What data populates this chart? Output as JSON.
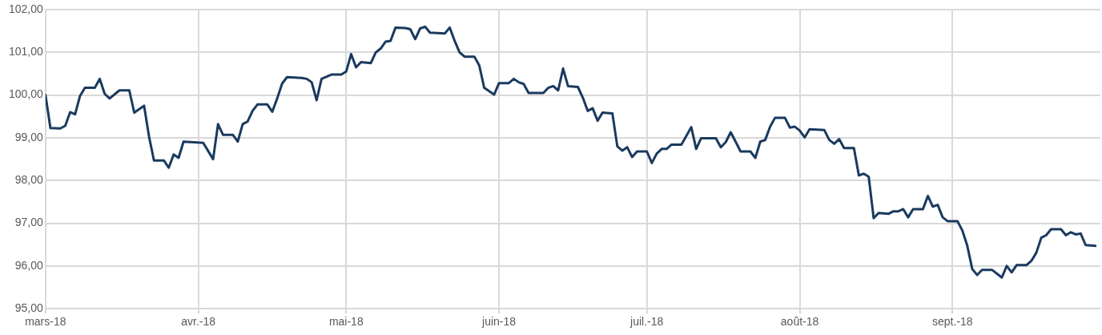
{
  "chart_data": {
    "type": "line",
    "x": [
      "2018-03-01",
      "2018-03-02",
      "2018-03-04",
      "2018-03-05",
      "2018-03-06",
      "2018-03-07",
      "2018-03-08",
      "2018-03-09",
      "2018-03-11",
      "2018-03-12",
      "2018-03-13",
      "2018-03-14",
      "2018-03-16",
      "2018-03-18",
      "2018-03-19",
      "2018-03-21",
      "2018-03-22",
      "2018-03-23",
      "2018-03-25",
      "2018-03-26",
      "2018-03-27",
      "2018-03-28",
      "2018-03-29",
      "2018-04-02",
      "2018-04-04",
      "2018-04-05",
      "2018-04-06",
      "2018-04-08",
      "2018-04-09",
      "2018-04-10",
      "2018-04-11",
      "2018-04-12",
      "2018-04-13",
      "2018-04-15",
      "2018-04-16",
      "2018-04-17",
      "2018-04-18",
      "2018-04-19",
      "2018-04-22",
      "2018-04-23",
      "2018-04-24",
      "2018-04-25",
      "2018-04-26",
      "2018-04-28",
      "2018-04-30",
      "2018-05-01",
      "2018-05-02",
      "2018-05-03",
      "2018-05-04",
      "2018-05-06",
      "2018-05-07",
      "2018-05-08",
      "2018-05-09",
      "2018-05-10",
      "2018-05-11",
      "2018-05-13",
      "2018-05-14",
      "2018-05-15",
      "2018-05-16",
      "2018-05-17",
      "2018-05-18",
      "2018-05-21",
      "2018-05-22",
      "2018-05-23",
      "2018-05-24",
      "2018-05-25",
      "2018-05-27",
      "2018-05-28",
      "2018-05-29",
      "2018-05-31",
      "2018-06-01",
      "2018-06-03",
      "2018-06-04",
      "2018-06-05",
      "2018-06-06",
      "2018-06-07",
      "2018-06-10",
      "2018-06-11",
      "2018-06-12",
      "2018-06-13",
      "2018-06-14",
      "2018-06-15",
      "2018-06-17",
      "2018-06-18",
      "2018-06-19",
      "2018-06-20",
      "2018-06-21",
      "2018-06-22",
      "2018-06-24",
      "2018-06-25",
      "2018-06-26",
      "2018-06-27",
      "2018-06-28",
      "2018-06-29",
      "2018-07-01",
      "2018-07-02",
      "2018-07-03",
      "2018-07-04",
      "2018-07-05",
      "2018-07-06",
      "2018-07-08",
      "2018-07-10",
      "2018-07-11",
      "2018-07-12",
      "2018-07-15",
      "2018-07-16",
      "2018-07-17",
      "2018-07-18",
      "2018-07-19",
      "2018-07-20",
      "2018-07-22",
      "2018-07-23",
      "2018-07-24",
      "2018-07-25",
      "2018-07-26",
      "2018-07-27",
      "2018-07-29",
      "2018-07-30",
      "2018-07-31",
      "2018-08-01",
      "2018-08-02",
      "2018-08-03",
      "2018-08-06",
      "2018-08-07",
      "2018-08-08",
      "2018-08-09",
      "2018-08-10",
      "2018-08-12",
      "2018-08-13",
      "2018-08-14",
      "2018-08-15",
      "2018-08-16",
      "2018-08-17",
      "2018-08-19",
      "2018-08-20",
      "2018-08-21",
      "2018-08-22",
      "2018-08-23",
      "2018-08-24",
      "2018-08-26",
      "2018-08-27",
      "2018-08-28",
      "2018-08-29",
      "2018-08-30",
      "2018-08-31",
      "2018-09-02",
      "2018-09-03",
      "2018-09-04",
      "2018-09-05",
      "2018-09-06",
      "2018-09-07",
      "2018-09-09",
      "2018-09-11",
      "2018-09-12",
      "2018-09-13",
      "2018-09-14",
      "2018-09-16",
      "2018-09-17",
      "2018-09-18",
      "2018-09-19",
      "2018-09-20",
      "2018-09-21",
      "2018-09-23",
      "2018-09-24",
      "2018-09-25",
      "2018-09-26",
      "2018-09-27",
      "2018-09-28",
      "2018-09-30"
    ],
    "series": [
      {
        "color": "#1a3a5f",
        "values": [
          100.0,
          99.23,
          99.22,
          99.28,
          99.6,
          99.55,
          99.98,
          100.17,
          100.17,
          100.38,
          100.03,
          99.92,
          100.11,
          100.11,
          99.59,
          99.75,
          99.03,
          98.47,
          98.47,
          98.3,
          98.61,
          98.53,
          98.91,
          98.88,
          98.5,
          99.32,
          99.07,
          99.07,
          98.91,
          99.32,
          99.38,
          99.63,
          99.78,
          99.78,
          99.61,
          99.92,
          100.27,
          100.42,
          100.4,
          100.38,
          100.3,
          99.88,
          100.38,
          100.48,
          100.48,
          100.55,
          100.96,
          100.65,
          100.77,
          100.75,
          101.0,
          101.09,
          101.25,
          101.27,
          101.58,
          101.57,
          101.54,
          101.31,
          101.56,
          101.6,
          101.46,
          101.44,
          101.58,
          101.27,
          101.0,
          100.9,
          100.9,
          100.69,
          100.17,
          100.01,
          100.28,
          100.28,
          100.38,
          100.3,
          100.26,
          100.05,
          100.05,
          100.17,
          100.21,
          100.11,
          100.62,
          100.21,
          100.19,
          99.94,
          99.63,
          99.69,
          99.4,
          99.59,
          99.57,
          98.8,
          98.7,
          98.78,
          98.55,
          98.68,
          98.68,
          98.41,
          98.63,
          98.74,
          98.74,
          98.84,
          98.84,
          99.25,
          98.74,
          98.99,
          98.99,
          98.78,
          98.9,
          99.13,
          98.91,
          98.68,
          98.68,
          98.53,
          98.91,
          98.95,
          99.26,
          99.47,
          99.47,
          99.24,
          99.26,
          99.17,
          99.01,
          99.2,
          99.18,
          98.95,
          98.86,
          98.97,
          98.76,
          98.76,
          98.12,
          98.16,
          98.09,
          97.12,
          97.24,
          97.22,
          97.28,
          97.28,
          97.33,
          97.14,
          97.33,
          97.33,
          97.64,
          97.39,
          97.43,
          97.14,
          97.05,
          97.05,
          96.83,
          96.47,
          95.93,
          95.79,
          95.91,
          95.91,
          95.73,
          96.0,
          95.85,
          96.02,
          96.02,
          96.12,
          96.31,
          96.66,
          96.72,
          96.86,
          96.86,
          96.72,
          96.79,
          96.74,
          96.76,
          96.49,
          96.47
        ]
      }
    ],
    "xlim": [
      "2018-03-01",
      "2018-10-01"
    ],
    "xticks": [
      {
        "value": "2018-03-01",
        "label": "mars-18"
      },
      {
        "value": "2018-04-01",
        "label": "avr.-18"
      },
      {
        "value": "2018-05-01",
        "label": "mai-18"
      },
      {
        "value": "2018-06-01",
        "label": "juin-18"
      },
      {
        "value": "2018-07-01",
        "label": "juil.-18"
      },
      {
        "value": "2018-08-01",
        "label": "août-18"
      },
      {
        "value": "2018-09-01",
        "label": "sept.-18"
      }
    ],
    "ylim": [
      95,
      102
    ],
    "yticks": [
      {
        "value": 95,
        "label": "95,00"
      },
      {
        "value": 96,
        "label": "96,00"
      },
      {
        "value": 97,
        "label": "97,00"
      },
      {
        "value": 98,
        "label": "98,00"
      },
      {
        "value": 99,
        "label": "99,00"
      },
      {
        "value": 100,
        "label": "100,00"
      },
      {
        "value": 101,
        "label": "101,00"
      },
      {
        "value": 102,
        "label": "102,00"
      }
    ],
    "grid": true,
    "legend": false,
    "marker": "none",
    "line_style": "solid"
  }
}
